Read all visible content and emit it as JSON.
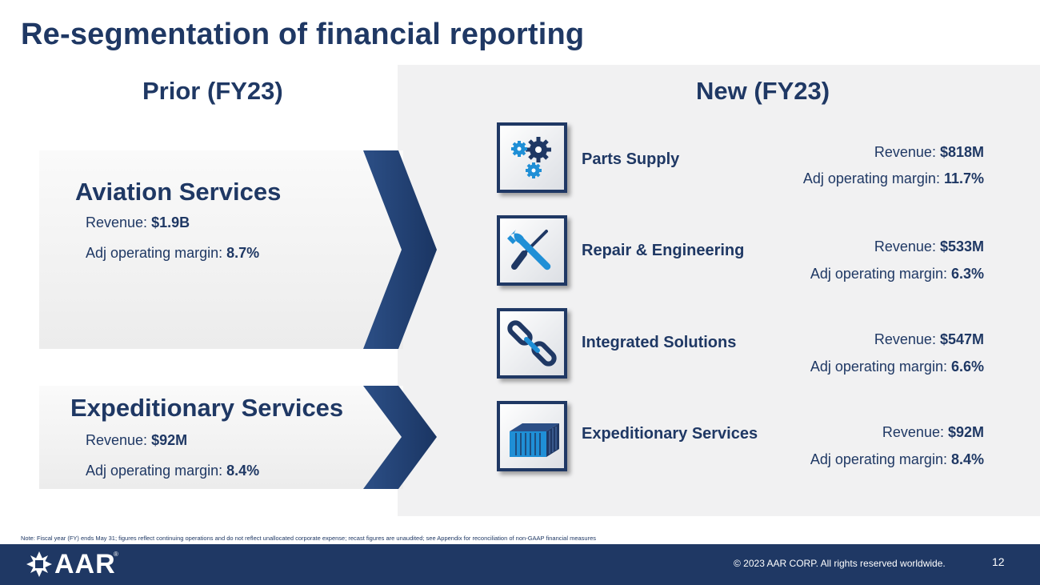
{
  "slide": {
    "title": "Re-segmentation of financial reporting",
    "prior_heading": "Prior (FY23)",
    "new_heading": "New (FY23)"
  },
  "prior": {
    "aviation": {
      "name": "Aviation Services",
      "revenue_label": "Revenue: ",
      "revenue_value": "$1.9B",
      "margin_label": "Adj operating margin: ",
      "margin_value": "8.7%"
    },
    "expeditionary": {
      "name": "Expeditionary Services",
      "revenue_label": "Revenue: ",
      "revenue_value": "$92M",
      "margin_label": "Adj operating margin: ",
      "margin_value": "8.4%"
    }
  },
  "new_segments": [
    {
      "name": "Parts Supply",
      "icon": "gears-icon",
      "revenue_label": "Revenue: ",
      "revenue_value": "$818M",
      "margin_label": "Adj operating margin: ",
      "margin_value": "11.7%"
    },
    {
      "name": "Repair & Engineering",
      "icon": "wrench-screwdriver-icon",
      "revenue_label": "Revenue: ",
      "revenue_value": "$533M",
      "margin_label": "Adj operating margin: ",
      "margin_value": "6.3%"
    },
    {
      "name": "Integrated Solutions",
      "icon": "chain-link-icon",
      "revenue_label": "Revenue: ",
      "revenue_value": "$547M",
      "margin_label": "Adj operating margin: ",
      "margin_value": "6.6%"
    },
    {
      "name": "Expeditionary Services",
      "icon": "shipping-container-icon",
      "revenue_label": "Revenue: ",
      "revenue_value": "$92M",
      "margin_label": "Adj operating margin: ",
      "margin_value": "8.4%"
    }
  ],
  "footer": {
    "note": "Note: Fiscal year (FY) ends May 31; figures reflect continuing operations and do not reflect unallocated corporate expense; recast figures are unaudited; see Appendix for reconciliation of non-GAAP financial measures",
    "logo_text": "AAR",
    "logo_reg": "®",
    "copyright": "© 2023 AAR CORP. All rights reserved worldwide.",
    "page_number": "12"
  },
  "colors": {
    "brand_navy": "#1f3864",
    "icon_blue": "#1f8fd6",
    "panel_gray": "#f1f1f2"
  }
}
